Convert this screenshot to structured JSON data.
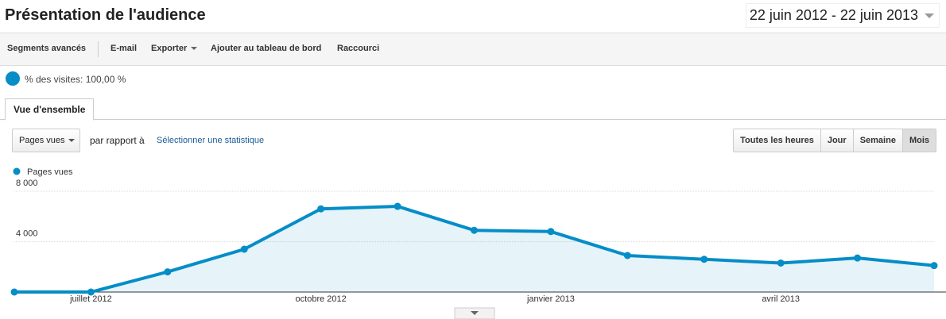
{
  "header": {
    "title": "Présentation de l'audience",
    "date_range": "22 juin 2012 - 22 juin 2013"
  },
  "toolbar": [
    "Segments avancés",
    "E-mail",
    "Exporter",
    "Ajouter au tableau de bord",
    "Raccourci"
  ],
  "segment": {
    "label": "% des visites: 100,00 %"
  },
  "tab": "Vue d'ensemble",
  "controls": {
    "metric": "Pages vues",
    "compare": "par rapport à",
    "select": "Sélectionner une statistique",
    "periods": [
      "Toutes les heures",
      "Jour",
      "Semaine",
      "Mois"
    ]
  },
  "chart_data": {
    "type": "line",
    "categories": [
      null,
      "juillet 2012",
      null,
      null,
      "octobre 2012",
      null,
      null,
      "janvier 2013",
      null,
      null,
      "avril 2013",
      null,
      null
    ],
    "series": [
      {
        "name": "Pages vues",
        "color": "#058dc7",
        "values": [
          0,
          0,
          1600,
          3400,
          6600,
          6800,
          4900,
          4800,
          2900,
          2600,
          2300,
          2700,
          2100
        ]
      }
    ],
    "ylim": [
      0,
      8000
    ],
    "yticks": [
      {
        "value": 4000,
        "label": "4 000"
      },
      {
        "value": 8000,
        "label": "8 000"
      }
    ],
    "grid": true,
    "legend": "top-left"
  }
}
